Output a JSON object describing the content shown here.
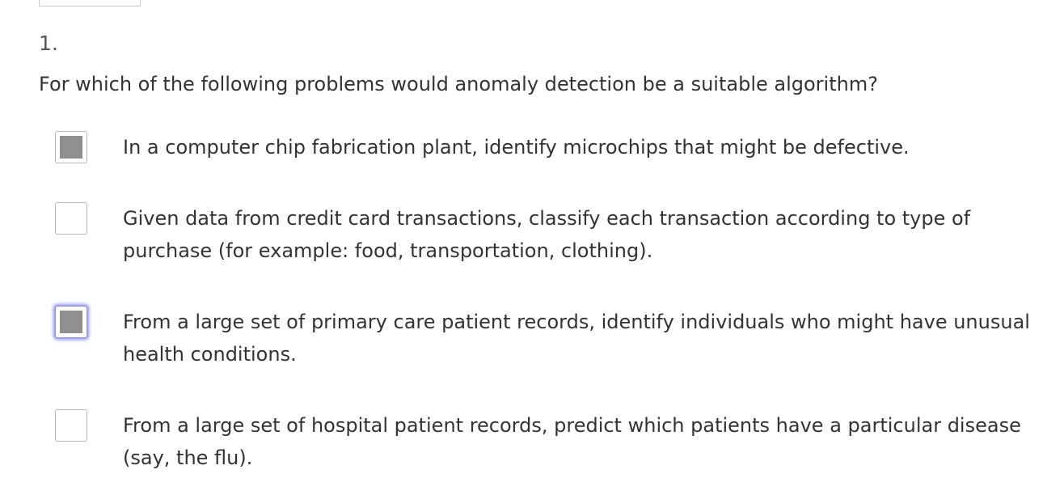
{
  "question": {
    "number": "1.",
    "text": "For which of the following problems would anomaly detection be a suitable algorithm?"
  },
  "options": [
    {
      "text": "In a computer chip fabrication plant, identify microchips that might be defective.",
      "checked": true,
      "focused": false
    },
    {
      "text": "Given data from credit card transactions, classify each transaction according to type of purchase (for example: food, transportation, clothing).",
      "checked": false,
      "focused": false
    },
    {
      "text": "From a large set of primary care patient records, identify individuals who might have unusual health conditions.",
      "checked": true,
      "focused": true
    },
    {
      "text": "From a large set of hospital patient records, predict which patients have a particular disease (say, the flu).",
      "checked": false,
      "focused": false
    }
  ]
}
